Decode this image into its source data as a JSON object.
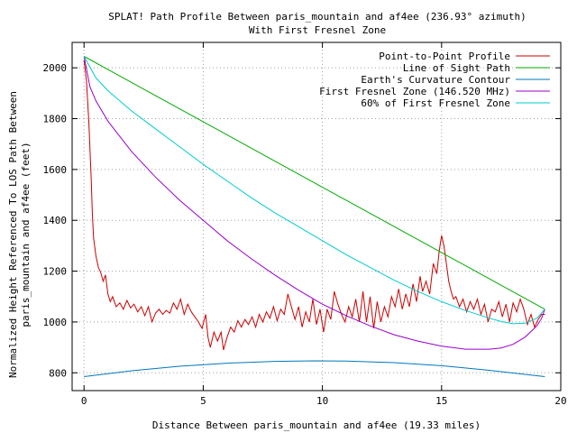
{
  "chart_data": {
    "type": "line",
    "title": "SPLAT! Path Profile Between paris_mountain and af4ee (236.93° azimuth)",
    "subtitle": "With First Fresnel Zone",
    "xlabel": "Distance Between paris_mountain and af4ee (19.33 miles)",
    "ylabel_line1": "Normalized Height Referenced To LOS Path Between",
    "ylabel_line2": "paris_mountain and af4ee (feet)",
    "xlim": [
      -0.5,
      20
    ],
    "ylim": [
      730,
      2100
    ],
    "grid": true,
    "legend_position": "top-right",
    "x_ticks": [
      0,
      5,
      10,
      15,
      20
    ],
    "y_ticks": [
      800,
      1000,
      1200,
      1400,
      1600,
      1800,
      2000
    ],
    "series": [
      {
        "name": "Point-to-Point Profile",
        "color": "#cc0000",
        "points": [
          [
            0,
            2030
          ],
          [
            0.1,
            1950
          ],
          [
            0.2,
            1790
          ],
          [
            0.3,
            1560
          ],
          [
            0.35,
            1420
          ],
          [
            0.4,
            1330
          ],
          [
            0.5,
            1260
          ],
          [
            0.6,
            1215
          ],
          [
            0.7,
            1195
          ],
          [
            0.8,
            1160
          ],
          [
            0.9,
            1185
          ],
          [
            1.0,
            1110
          ],
          [
            1.1,
            1080
          ],
          [
            1.2,
            1100
          ],
          [
            1.35,
            1060
          ],
          [
            1.5,
            1075
          ],
          [
            1.65,
            1050
          ],
          [
            1.8,
            1085
          ],
          [
            1.95,
            1055
          ],
          [
            2.1,
            1070
          ],
          [
            2.25,
            1040
          ],
          [
            2.4,
            1060
          ],
          [
            2.55,
            1025
          ],
          [
            2.7,
            1060
          ],
          [
            2.85,
            1000
          ],
          [
            3.0,
            1035
          ],
          [
            3.15,
            1050
          ],
          [
            3.3,
            1030
          ],
          [
            3.45,
            1045
          ],
          [
            3.6,
            1035
          ],
          [
            3.75,
            1075
          ],
          [
            3.9,
            1050
          ],
          [
            4.05,
            1090
          ],
          [
            4.2,
            1030
          ],
          [
            4.35,
            1070
          ],
          [
            4.5,
            1040
          ],
          [
            4.65,
            1020
          ],
          [
            4.8,
            1000
          ],
          [
            4.95,
            975
          ],
          [
            5.1,
            1030
          ],
          [
            5.2,
            940
          ],
          [
            5.3,
            900
          ],
          [
            5.45,
            960
          ],
          [
            5.6,
            925
          ],
          [
            5.75,
            960
          ],
          [
            5.85,
            890
          ],
          [
            6.0,
            940
          ],
          [
            6.15,
            980
          ],
          [
            6.3,
            960
          ],
          [
            6.45,
            1005
          ],
          [
            6.6,
            980
          ],
          [
            6.75,
            1010
          ],
          [
            6.9,
            990
          ],
          [
            7.05,
            1020
          ],
          [
            7.2,
            980
          ],
          [
            7.35,
            1030
          ],
          [
            7.5,
            1000
          ],
          [
            7.65,
            1040
          ],
          [
            7.8,
            1015
          ],
          [
            7.95,
            1060
          ],
          [
            8.1,
            1005
          ],
          [
            8.25,
            1050
          ],
          [
            8.4,
            1030
          ],
          [
            8.55,
            1110
          ],
          [
            8.7,
            1060
          ],
          [
            8.85,
            1010
          ],
          [
            9.0,
            1060
          ],
          [
            9.15,
            980
          ],
          [
            9.3,
            1040
          ],
          [
            9.45,
            1000
          ],
          [
            9.6,
            1090
          ],
          [
            9.75,
            990
          ],
          [
            9.9,
            1050
          ],
          [
            10.05,
            960
          ],
          [
            10.2,
            1050
          ],
          [
            10.35,
            1010
          ],
          [
            10.5,
            1120
          ],
          [
            10.65,
            1070
          ],
          [
            10.8,
            1030
          ],
          [
            10.95,
            1000
          ],
          [
            11.1,
            1060
          ],
          [
            11.25,
            1020
          ],
          [
            11.4,
            1090
          ],
          [
            11.55,
            1000
          ],
          [
            11.7,
            1120
          ],
          [
            11.85,
            1000
          ],
          [
            12.0,
            1100
          ],
          [
            12.15,
            975
          ],
          [
            12.3,
            1080
          ],
          [
            12.45,
            1000
          ],
          [
            12.6,
            1060
          ],
          [
            12.75,
            1020
          ],
          [
            12.9,
            1100
          ],
          [
            13.05,
            1060
          ],
          [
            13.2,
            1130
          ],
          [
            13.35,
            1050
          ],
          [
            13.5,
            1110
          ],
          [
            13.65,
            1060
          ],
          [
            13.8,
            1150
          ],
          [
            13.95,
            1080
          ],
          [
            14.1,
            1180
          ],
          [
            14.2,
            1120
          ],
          [
            14.35,
            1160
          ],
          [
            14.5,
            1110
          ],
          [
            14.65,
            1230
          ],
          [
            14.8,
            1190
          ],
          [
            14.9,
            1280
          ],
          [
            15.0,
            1340
          ],
          [
            15.1,
            1300
          ],
          [
            15.2,
            1230
          ],
          [
            15.3,
            1160
          ],
          [
            15.4,
            1120
          ],
          [
            15.5,
            1090
          ],
          [
            15.6,
            1100
          ],
          [
            15.75,
            1060
          ],
          [
            15.9,
            1090
          ],
          [
            16.05,
            1040
          ],
          [
            16.2,
            1080
          ],
          [
            16.35,
            1050
          ],
          [
            16.5,
            1090
          ],
          [
            16.65,
            1030
          ],
          [
            16.8,
            1070
          ],
          [
            16.95,
            1000
          ],
          [
            17.1,
            1050
          ],
          [
            17.25,
            1040
          ],
          [
            17.4,
            1080
          ],
          [
            17.55,
            1020
          ],
          [
            17.7,
            1070
          ],
          [
            17.85,
            1000
          ],
          [
            18.0,
            1075
          ],
          [
            18.15,
            1040
          ],
          [
            18.3,
            1090
          ],
          [
            18.45,
            1050
          ],
          [
            18.6,
            990
          ],
          [
            18.75,
            1030
          ],
          [
            18.9,
            980
          ],
          [
            19.05,
            1010
          ],
          [
            19.2,
            1030
          ],
          [
            19.33,
            1030
          ]
        ]
      },
      {
        "name": "Line of Sight Path",
        "color": "#00aa00",
        "points": [
          [
            0,
            2045
          ],
          [
            19.33,
            1050
          ]
        ]
      },
      {
        "name": "Earth's Curvature Contour",
        "color": "#0077bb",
        "points": [
          [
            0,
            785
          ],
          [
            2,
            808
          ],
          [
            4,
            826
          ],
          [
            6,
            838
          ],
          [
            8,
            845
          ],
          [
            9.67,
            847
          ],
          [
            11,
            846
          ],
          [
            13,
            840
          ],
          [
            15,
            828
          ],
          [
            17,
            810
          ],
          [
            19.33,
            785
          ]
        ]
      },
      {
        "name": "First Fresnel Zone (146.520 MHz)",
        "color": "#9900cc",
        "points": [
          [
            0,
            2045
          ],
          [
            0.25,
            1925
          ],
          [
            0.5,
            1870
          ],
          [
            1,
            1790
          ],
          [
            2,
            1670
          ],
          [
            3,
            1570
          ],
          [
            4,
            1480
          ],
          [
            5,
            1400
          ],
          [
            6,
            1320
          ],
          [
            7,
            1250
          ],
          [
            8,
            1185
          ],
          [
            9,
            1125
          ],
          [
            10,
            1070
          ],
          [
            11,
            1025
          ],
          [
            12,
            985
          ],
          [
            13,
            950
          ],
          [
            14,
            925
          ],
          [
            15,
            905
          ],
          [
            16,
            893
          ],
          [
            17,
            893
          ],
          [
            17.5,
            898
          ],
          [
            18,
            912
          ],
          [
            18.5,
            940
          ],
          [
            19,
            985
          ],
          [
            19.2,
            1015
          ],
          [
            19.33,
            1050
          ]
        ]
      },
      {
        "name": "60% of First Fresnel Zone",
        "color": "#00cccc",
        "points": [
          [
            0,
            2045
          ],
          [
            0.5,
            1960
          ],
          [
            1,
            1910
          ],
          [
            2,
            1830
          ],
          [
            3,
            1760
          ],
          [
            4,
            1690
          ],
          [
            5,
            1620
          ],
          [
            6,
            1555
          ],
          [
            7,
            1490
          ],
          [
            8,
            1430
          ],
          [
            9,
            1375
          ],
          [
            10,
            1320
          ],
          [
            11,
            1265
          ],
          [
            12,
            1215
          ],
          [
            13,
            1165
          ],
          [
            14,
            1120
          ],
          [
            15,
            1080
          ],
          [
            16,
            1045
          ],
          [
            17,
            1015
          ],
          [
            17.5,
            1002
          ],
          [
            18,
            993
          ],
          [
            18.5,
            995
          ],
          [
            19,
            1015
          ],
          [
            19.33,
            1050
          ]
        ]
      }
    ]
  }
}
